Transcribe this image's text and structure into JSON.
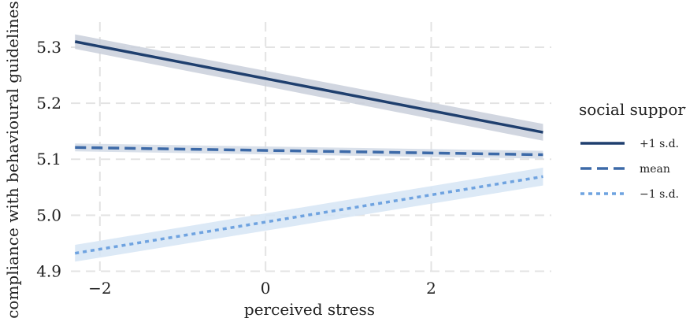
{
  "chart_data": {
    "type": "line",
    "xlabel": "perceived stress",
    "ylabel": "compliance with behavioural guidelines",
    "xlim": [
      -2.35,
      3.45
    ],
    "ylim": [
      4.895,
      5.345
    ],
    "x_ticks": [
      -2,
      0,
      2
    ],
    "x_tick_labels": [
      "−2",
      "0",
      "2"
    ],
    "y_ticks": [
      4.9,
      5.0,
      5.1,
      5.2,
      5.3
    ],
    "y_tick_labels": [
      "4.9",
      "5.0",
      "5.1",
      "5.2",
      "5.3"
    ],
    "grid": true,
    "legend_title": "social support",
    "legend_position": "right",
    "x": [
      -2.3,
      3.35
    ],
    "series": [
      {
        "name": "+1 s.d.",
        "values": [
          5.31,
          5.148
        ],
        "ci_lower": [
          5.297,
          5.133
        ],
        "ci_upper": [
          5.323,
          5.163
        ],
        "color": "#1f3f6e",
        "ci_color": "#c9cfdb",
        "dash": "solid"
      },
      {
        "name": "mean",
        "values": [
          5.121,
          5.108
        ],
        "ci_lower": [
          5.114,
          5.101
        ],
        "ci_upper": [
          5.128,
          5.115
        ],
        "color": "#3d6aa8",
        "ci_color": "#d2dae6",
        "dash": "dashed"
      },
      {
        "name": "−1 s.d.",
        "values": [
          4.932,
          5.069
        ],
        "ci_lower": [
          4.917,
          5.053
        ],
        "ci_upper": [
          4.947,
          5.085
        ],
        "color": "#6fa3e0",
        "ci_color": "#d6e5f5",
        "dash": "dotted"
      }
    ]
  }
}
